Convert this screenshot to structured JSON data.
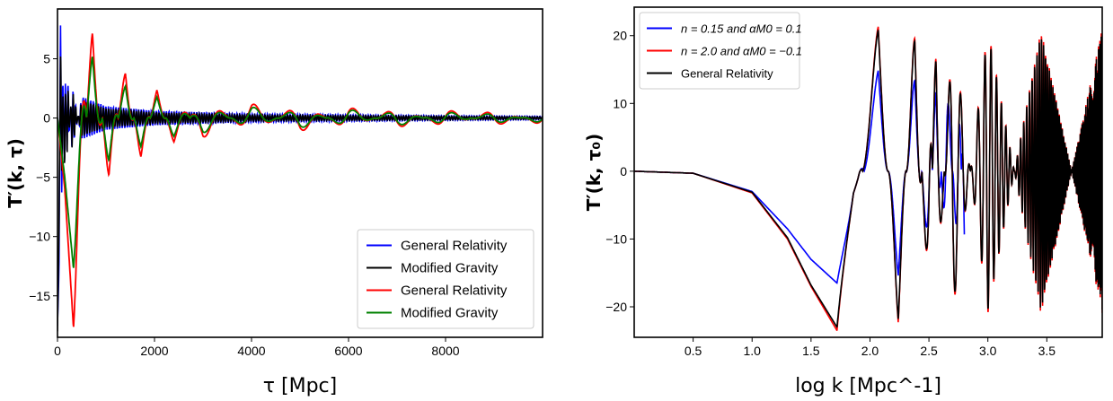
{
  "chart_data": [
    {
      "type": "line",
      "title": "",
      "xlabel": "τ [Mpc]",
      "ylabel": "T′(k, τ)",
      "xlim": [
        0,
        10000
      ],
      "ylim": [
        -18.5,
        9.2
      ],
      "xticks": [
        0,
        2000,
        4000,
        6000,
        8000
      ],
      "xtick_labels": [
        "0",
        "2000",
        "4000",
        "6000",
        "8000"
      ],
      "yticks": [
        5,
        0,
        -5,
        -10,
        -15
      ],
      "ytick_labels": [
        "5",
        "0",
        "−5",
        "−10",
        "−15"
      ],
      "grid": false,
      "legend_position": "lower-right",
      "series": [
        {
          "name": "General Relativity",
          "color": "#0000ff",
          "x": [
            0,
            30,
            60,
            100,
            150,
            200,
            300,
            500,
            1000,
            2000,
            4000,
            8000,
            10000
          ],
          "y": [
            -17.5,
            -13,
            8,
            5.5,
            -5.5,
            4,
            -2.8,
            1.8,
            1.0,
            0.6,
            0.35,
            0.2,
            0.15
          ]
        },
        {
          "name": "Modified Gravity",
          "color": "#000000",
          "x": [
            0,
            30,
            60,
            100,
            150,
            200,
            300,
            500,
            1000,
            2000,
            4000,
            8000,
            10000
          ],
          "y": [
            -18,
            -10,
            5.5,
            4.5,
            -5,
            3.5,
            -2.5,
            1.5,
            0.8,
            0.45,
            0.25,
            0.15,
            0.1
          ]
        },
        {
          "name": "General Relativity",
          "color": "#ff0000",
          "x": [
            0,
            150,
            330,
            720,
            1060,
            1400,
            1720,
            2050,
            2400,
            3000,
            4000,
            5000,
            6000,
            7000,
            8000,
            9000,
            10000
          ],
          "y": [
            0,
            -6,
            -17.7,
            8.0,
            -5.4,
            4.2,
            -3.4,
            2.4,
            -2.1,
            1.7,
            -1.3,
            1.2,
            -1.0,
            0.9,
            -0.8,
            0.7,
            -0.6
          ]
        },
        {
          "name": "Modified Gravity",
          "color": "#008000",
          "x": [
            0,
            150,
            330,
            720,
            1060,
            1400,
            1720,
            2050,
            2400,
            3000,
            4000,
            5000,
            6000,
            7000,
            8000,
            9000,
            10000
          ],
          "y": [
            0,
            -5,
            -12.7,
            5.8,
            -4.0,
            3.0,
            -2.5,
            1.8,
            -1.6,
            1.3,
            -1.0,
            0.9,
            -0.8,
            0.7,
            -0.6,
            0.5,
            -0.45
          ]
        }
      ]
    },
    {
      "type": "line",
      "title": "",
      "xlabel": "log k [Mpc^-1]",
      "ylabel": "T′(k, τ₀)",
      "xlim": [
        0.0,
        3.97
      ],
      "ylim": [
        -24.5,
        24.2
      ],
      "xticks": [
        0.5,
        1.0,
        1.5,
        2.0,
        2.5,
        3.0,
        3.5
      ],
      "xtick_labels": [
        "0.5",
        "1.0",
        "1.5",
        "2.0",
        "2.5",
        "3.0",
        "3.5"
      ],
      "yticks": [
        20,
        10,
        0,
        -10,
        -20
      ],
      "ytick_labels": [
        "20",
        "10",
        "0",
        "−10",
        "−20"
      ],
      "grid": false,
      "legend_position": "upper-left",
      "series": [
        {
          "name": "n = 0.15 and αM0 = 0.1",
          "color": "#0000ff",
          "x": [
            0.0,
            0.5,
            1.0,
            1.3,
            1.5,
            1.72,
            1.85,
            2.07,
            2.24,
            2.38,
            2.5,
            2.56,
            2.65,
            2.75,
            2.8
          ],
          "y": [
            0.0,
            -0.3,
            -3.0,
            -8.5,
            -13,
            -16.5,
            -13,
            15.5,
            -15.5,
            15.0,
            -15.0,
            15.0,
            -15.0,
            14.5,
            -14.5
          ]
        },
        {
          "name": "n = 2.0 and αM0 = −0.1",
          "color": "#ff0000",
          "x": [
            0.0,
            0.5,
            1.0,
            1.3,
            1.5,
            1.72,
            1.85,
            2.07,
            2.24,
            2.38,
            2.5,
            2.56,
            2.7,
            3.0,
            3.45,
            3.97
          ],
          "y": [
            0.0,
            -0.3,
            -3.2,
            -10,
            -17,
            -23.5,
            -15,
            22.3,
            -22.5,
            22.0,
            -21.5,
            21.5,
            -21.3,
            21.0,
            -21.0,
            21.0
          ]
        },
        {
          "name": "General Relativity",
          "color": "#000000",
          "x": [
            0.0,
            0.5,
            1.0,
            1.3,
            1.5,
            1.72,
            1.85,
            2.07,
            2.24,
            2.38,
            2.5,
            2.56,
            2.7,
            3.0,
            3.45,
            3.97
          ],
          "y": [
            0.0,
            -0.3,
            -3.1,
            -9.8,
            -16.8,
            -23.0,
            -14.8,
            21.8,
            -22.0,
            21.5,
            -21.0,
            21.0,
            -20.8,
            20.5,
            -20.5,
            20.5
          ]
        }
      ]
    }
  ]
}
